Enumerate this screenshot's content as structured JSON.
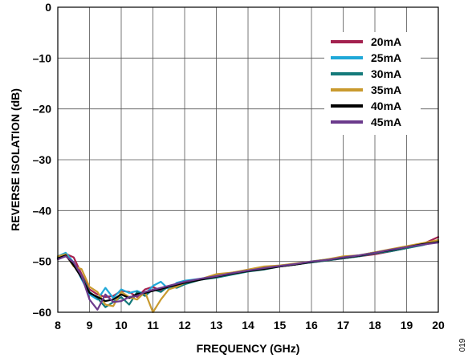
{
  "chart_data": {
    "type": "line",
    "xlabel": "FREQUENCY (GHz)",
    "ylabel": "REVERSE ISOLATION (dB)",
    "xlim": [
      8,
      20
    ],
    "ylim": [
      -60,
      0
    ],
    "x_ticks": [
      8,
      9,
      10,
      11,
      12,
      13,
      14,
      15,
      16,
      17,
      18,
      19,
      20
    ],
    "y_ticks": [
      0,
      -10,
      -20,
      -30,
      -40,
      -50,
      -60
    ],
    "x_tick_labels": [
      "8",
      "9",
      "10",
      "11",
      "12",
      "13",
      "14",
      "15",
      "16",
      "17",
      "18",
      "19",
      "20"
    ],
    "y_tick_labels": [
      "0",
      "–10",
      "–20",
      "–30",
      "–40",
      "–50",
      "–60"
    ],
    "grid": true,
    "legend_position": "top-right",
    "figure_id": "019",
    "x": [
      8.0,
      8.25,
      8.5,
      8.75,
      9.0,
      9.25,
      9.5,
      9.75,
      10.0,
      10.25,
      10.5,
      10.75,
      11.0,
      11.25,
      11.5,
      11.75,
      12.0,
      12.5,
      13.0,
      13.5,
      14.0,
      14.5,
      15.0,
      15.5,
      16.0,
      16.5,
      17.0,
      17.5,
      18.0,
      18.5,
      19.0,
      19.5,
      20.0
    ],
    "series": [
      {
        "name": "20mA",
        "color": "#a3214f",
        "values": [
          -49.5,
          -48.5,
          -49.2,
          -52.5,
          -55.5,
          -56.5,
          -57.0,
          -56.8,
          -55.8,
          -56.0,
          -57.0,
          -55.5,
          -55.0,
          -55.8,
          -55.0,
          -54.8,
          -54.0,
          -53.5,
          -53.0,
          -52.2,
          -51.8,
          -51.2,
          -51.0,
          -50.6,
          -50.2,
          -49.8,
          -49.4,
          -49.0,
          -48.6,
          -48.0,
          -47.4,
          -46.6,
          -45.2
        ]
      },
      {
        "name": "25mA",
        "color": "#1fa8d8",
        "values": [
          -49.0,
          -48.3,
          -50.2,
          -53.5,
          -56.5,
          -57.5,
          -55.2,
          -57.2,
          -55.5,
          -56.2,
          -55.8,
          -56.5,
          -54.8,
          -54.0,
          -55.5,
          -54.2,
          -53.8,
          -53.4,
          -52.8,
          -52.4,
          -51.8,
          -51.4,
          -50.8,
          -50.5,
          -50.0,
          -49.6,
          -49.2,
          -48.8,
          -48.2,
          -47.8,
          -47.2,
          -46.6,
          -46.0
        ]
      },
      {
        "name": "30mA",
        "color": "#147a7a",
        "values": [
          -49.2,
          -48.8,
          -50.5,
          -52.8,
          -56.0,
          -57.2,
          -59.0,
          -58.0,
          -57.0,
          -58.5,
          -56.0,
          -56.8,
          -55.5,
          -56.0,
          -54.8,
          -55.2,
          -54.5,
          -53.6,
          -53.2,
          -52.6,
          -52.0,
          -51.6,
          -51.0,
          -50.6,
          -50.2,
          -49.8,
          -49.4,
          -49.0,
          -48.4,
          -48.0,
          -47.4,
          -46.8,
          -46.0
        ]
      },
      {
        "name": "35mA",
        "color": "#c99a2e",
        "values": [
          -49.0,
          -48.6,
          -51.0,
          -51.5,
          -55.0,
          -56.0,
          -58.5,
          -58.8,
          -56.0,
          -57.0,
          -57.5,
          -56.0,
          -60.0,
          -57.5,
          -55.5,
          -55.0,
          -54.2,
          -53.5,
          -52.5,
          -52.2,
          -51.6,
          -51.0,
          -50.8,
          -50.4,
          -50.0,
          -49.6,
          -49.0,
          -48.8,
          -48.2,
          -47.6,
          -47.0,
          -46.4,
          -45.8
        ]
      },
      {
        "name": "40mA",
        "color": "#000000",
        "values": [
          -49.4,
          -48.8,
          -50.8,
          -53.2,
          -56.2,
          -57.0,
          -57.8,
          -57.5,
          -56.5,
          -57.2,
          -56.4,
          -56.2,
          -55.8,
          -55.4,
          -55.0,
          -54.6,
          -54.2,
          -53.6,
          -53.0,
          -52.4,
          -51.9,
          -51.5,
          -51.0,
          -50.6,
          -50.1,
          -49.7,
          -49.3,
          -48.9,
          -48.3,
          -47.8,
          -47.2,
          -46.6,
          -46.2
        ]
      },
      {
        "name": "45mA",
        "color": "#6b3a8c",
        "values": [
          -49.6,
          -49.0,
          -50.2,
          -52.8,
          -57.5,
          -59.5,
          -56.5,
          -58.0,
          -57.8,
          -57.0,
          -56.8,
          -56.0,
          -55.6,
          -55.2,
          -54.8,
          -54.4,
          -54.0,
          -53.4,
          -52.9,
          -52.3,
          -51.8,
          -51.3,
          -50.9,
          -50.5,
          -50.0,
          -49.7,
          -49.2,
          -48.8,
          -48.3,
          -47.7,
          -47.2,
          -46.7,
          -46.3
        ]
      }
    ]
  }
}
